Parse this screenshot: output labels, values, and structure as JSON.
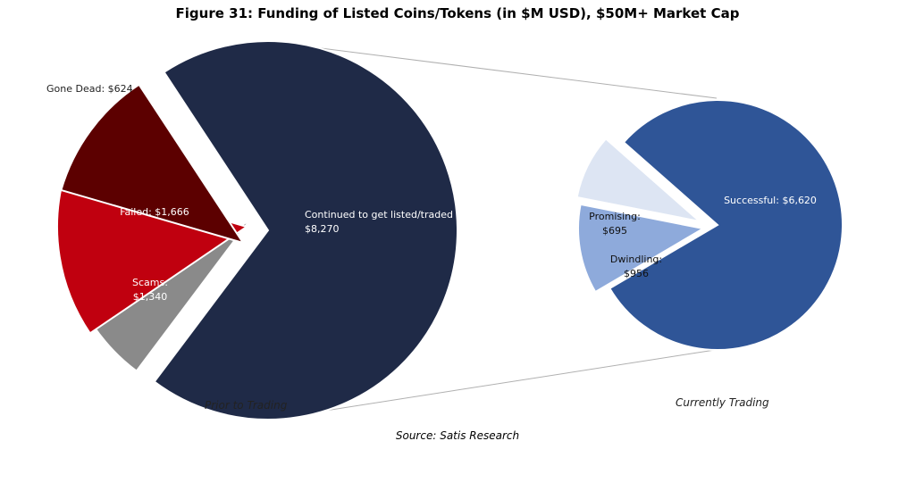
{
  "chart_data": {
    "title": "Figure 31: Funding of Listed Coins/Tokens (in $M USD), $50M+ Market Cap",
    "source": "Source: Satis Research",
    "charts": [
      {
        "type": "pie",
        "caption": "Prior to Trading",
        "slices": [
          {
            "label": "Continued to get listed/traded",
            "value": 8270,
            "value_label": "$8,270",
            "color": "#1f2a47"
          },
          {
            "label": "Gone Dead",
            "value": 624,
            "value_label": "$624",
            "color": "#8a8a8a"
          },
          {
            "label": "Failed",
            "value": 1666,
            "value_label": "$1,666",
            "color": "#c0000f"
          },
          {
            "label": "Scams",
            "value": 1340,
            "value_label": "$1,340",
            "color": "#5c0000"
          }
        ]
      },
      {
        "type": "pie",
        "caption": "Currently Trading",
        "slices": [
          {
            "label": "Successful",
            "value": 6620,
            "value_label": "$6,620",
            "color": "#2f5597"
          },
          {
            "label": "Dwindling",
            "value": 956,
            "value_label": "$956",
            "color": "#8eaadb"
          },
          {
            "label": "Promising",
            "value": 695,
            "value_label": "$695",
            "color": "#dde5f3"
          }
        ]
      }
    ]
  }
}
